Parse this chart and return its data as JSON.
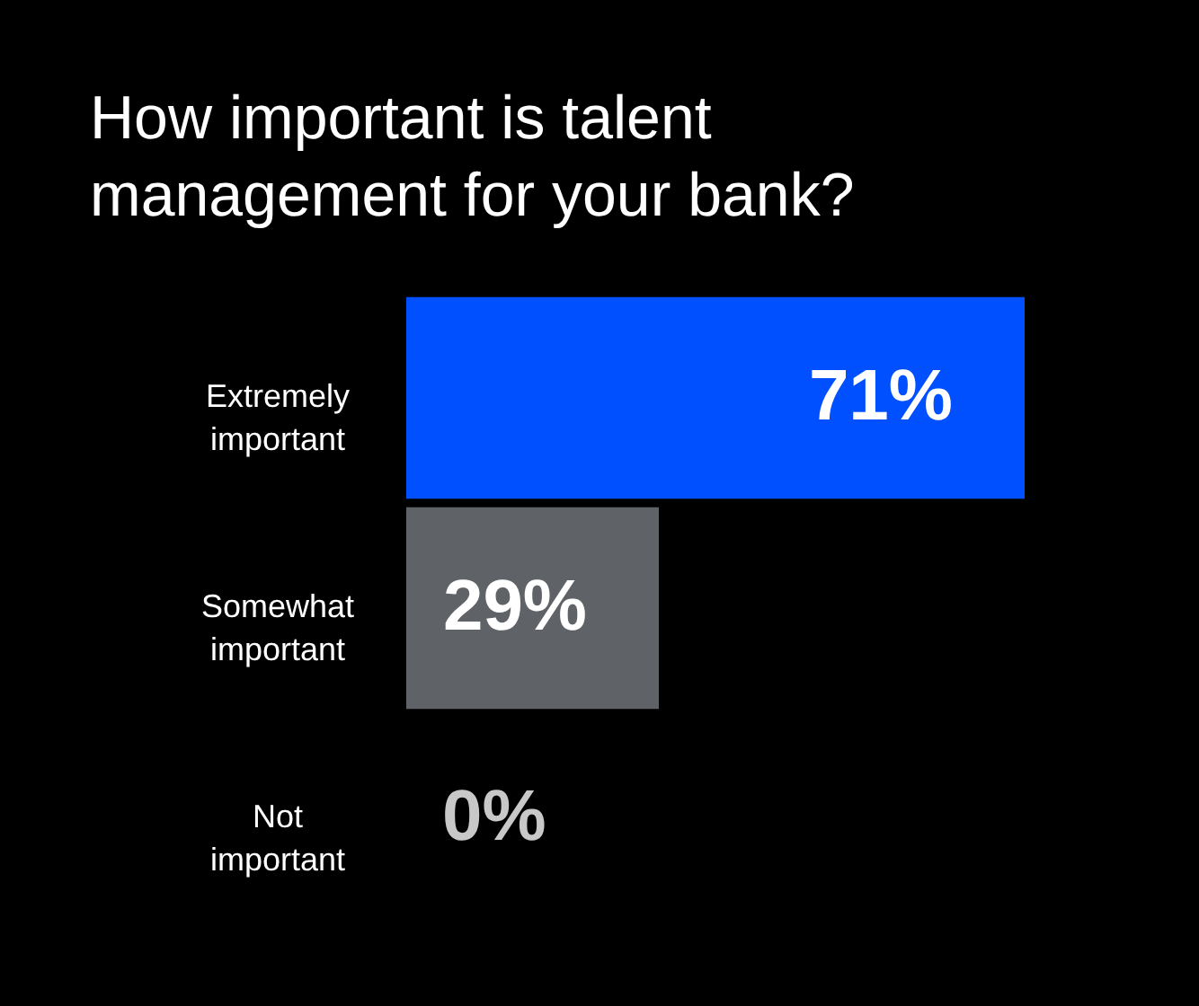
{
  "chart_data": {
    "type": "bar",
    "orientation": "horizontal",
    "title": "How important is talent management for your bank?",
    "categories": [
      "Extremely important",
      "Somewhat important",
      "Not important"
    ],
    "values": [
      71,
      29,
      0
    ],
    "colors": [
      "#0050ff",
      "#5f6368",
      "#c8c8c8"
    ],
    "value_labels": [
      "71%",
      "29%",
      "0%"
    ]
  }
}
